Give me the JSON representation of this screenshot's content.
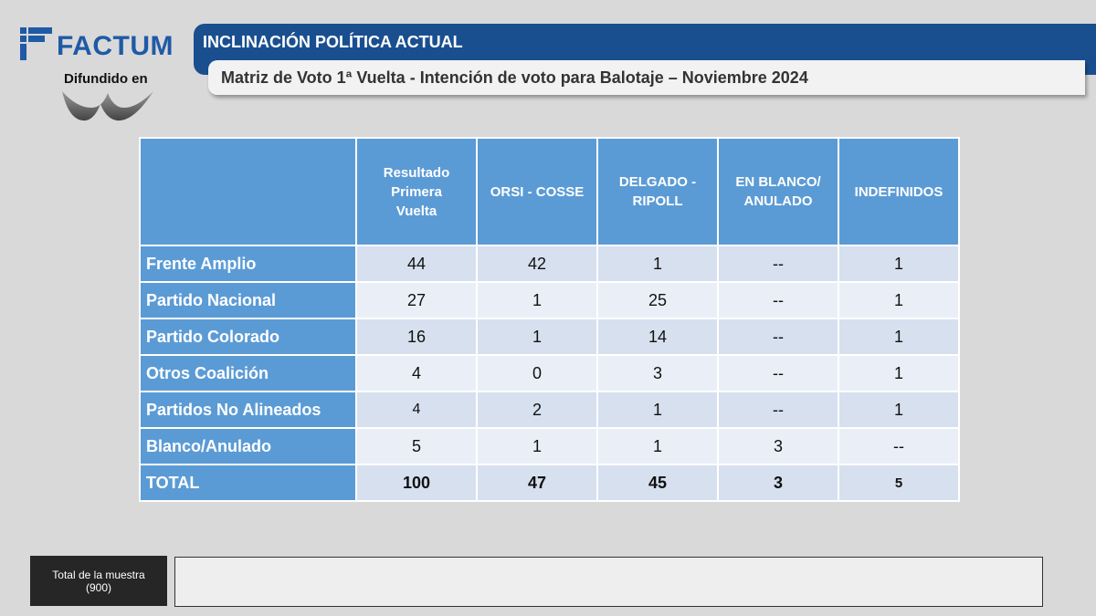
{
  "brand": {
    "name": "FACTUM",
    "diffused_label": "Difundido en"
  },
  "header": {
    "title": "INCLINACIÓN POLÍTICA ACTUAL",
    "subtitle": "Matriz de Voto 1ª Vuelta - Intención de voto para Balotaje – Noviembre 2024"
  },
  "table": {
    "columns": [
      "",
      "Resultado Primera Vuelta",
      "ORSI - COSSE",
      "DELGADO - RIPOLL",
      "EN BLANCO/ ANULADO",
      "INDEFINIDOS"
    ],
    "rows": [
      {
        "label": "Frente Amplio",
        "values": [
          "44",
          "42",
          "1",
          "--",
          "1"
        ]
      },
      {
        "label": "Partido Nacional",
        "values": [
          "27",
          "1",
          "25",
          "--",
          "1"
        ]
      },
      {
        "label": "Partido Colorado",
        "values": [
          "16",
          "1",
          "14",
          "--",
          "1"
        ]
      },
      {
        "label": "Otros Coalición",
        "values": [
          "4",
          "0",
          "3",
          "--",
          "1"
        ]
      },
      {
        "label": "Partidos No Alineados",
        "values": [
          "4",
          "2",
          "1",
          "--",
          "1"
        ]
      },
      {
        "label": "Blanco/Anulado",
        "values": [
          "5",
          "1",
          "1",
          "3",
          "--"
        ]
      },
      {
        "label": "TOTAL",
        "values": [
          "100",
          "47",
          "45",
          "3",
          "5"
        ]
      }
    ]
  },
  "footer": {
    "sample_label": "Total de la muestra",
    "sample_value": "(900)"
  },
  "colors": {
    "brand_blue": "#1f5aa6",
    "banner_blue": "#1a4f8f",
    "header_cell": "#5b9bd5",
    "row_odd": "#d6e0ef",
    "row_even": "#eaeff7"
  }
}
